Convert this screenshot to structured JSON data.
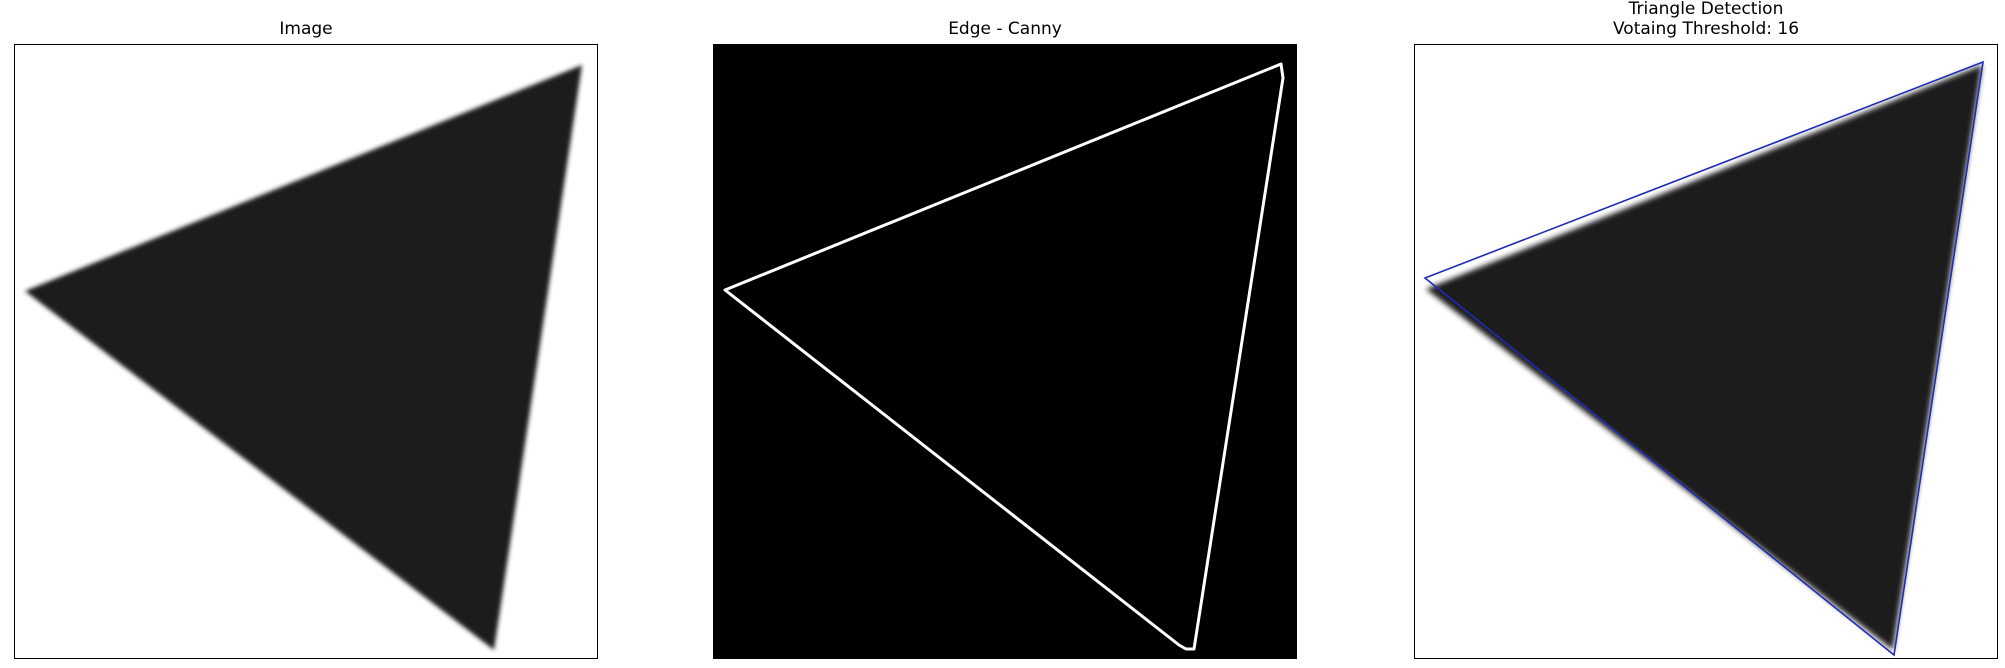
{
  "panels": [
    {
      "title": "Image"
    },
    {
      "title": "Edge - Canny"
    },
    {
      "title_line1": "Triangle Detection",
      "title_line2": "Votaing Threshold: 16"
    }
  ],
  "colors": {
    "triangle_fill": "#1a1a1a",
    "edge_color": "#ffffff",
    "edge_background": "#000000",
    "detection_outline": "#1f2bb4"
  }
}
